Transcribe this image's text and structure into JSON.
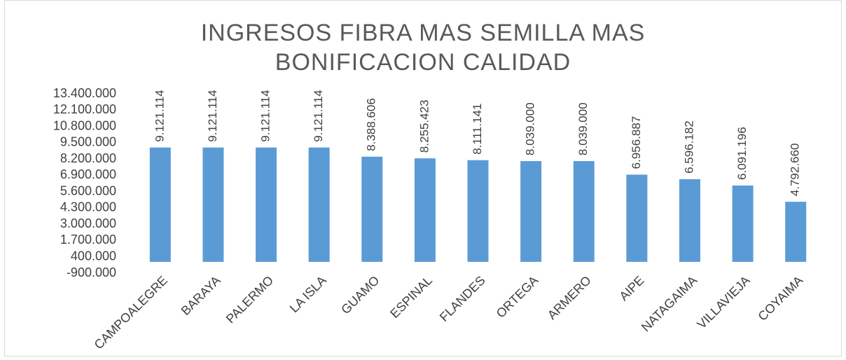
{
  "chart_data": {
    "type": "bar",
    "title": "INGRESOS FIBRA MAS SEMILLA MAS BONIFICACION CALIDAD",
    "categories": [
      "CAMPOALEGRE",
      "BARAYA",
      "PALERMO",
      "LA ISLA",
      "GUAMO",
      "ESPINAL",
      "FLANDES",
      "ORTEGA",
      "ARMERO",
      "AIPE",
      "NATAGAIMA",
      "VILLAVIEJA",
      "COYAIMA"
    ],
    "values": [
      9121114,
      9121114,
      9121114,
      9121114,
      8388606,
      8255423,
      8111141,
      8039000,
      8039000,
      6956887,
      6596182,
      6091196,
      4792660
    ],
    "value_labels": [
      "9.121.114",
      "9.121.114",
      "9.121.114",
      "9.121.114",
      "8.388.606",
      "8.255.423",
      "8.111.141",
      "8.039.000",
      "8.039.000",
      "6.956.887",
      "6.596.182",
      "6.091.196",
      "4.792.660"
    ],
    "color": "#5b9bd5",
    "ylim": [
      -900000,
      13400000
    ],
    "yticks": [
      {
        "value": -900000,
        "label": "-900.000"
      },
      {
        "value": 400000,
        "label": "400.000"
      },
      {
        "value": 1700000,
        "label": "1.700.000"
      },
      {
        "value": 3000000,
        "label": "3.000.000"
      },
      {
        "value": 4300000,
        "label": "4.300.000"
      },
      {
        "value": 5600000,
        "label": "5.600.000"
      },
      {
        "value": 6900000,
        "label": "6.900.000"
      },
      {
        "value": 8200000,
        "label": "8.200.000"
      },
      {
        "value": 9500000,
        "label": "9.500.000"
      },
      {
        "value": 10800000,
        "label": "10.800.000"
      },
      {
        "value": 12100000,
        "label": "12.100.000"
      },
      {
        "value": 13400000,
        "label": "13.400.000"
      }
    ],
    "grid": false
  }
}
